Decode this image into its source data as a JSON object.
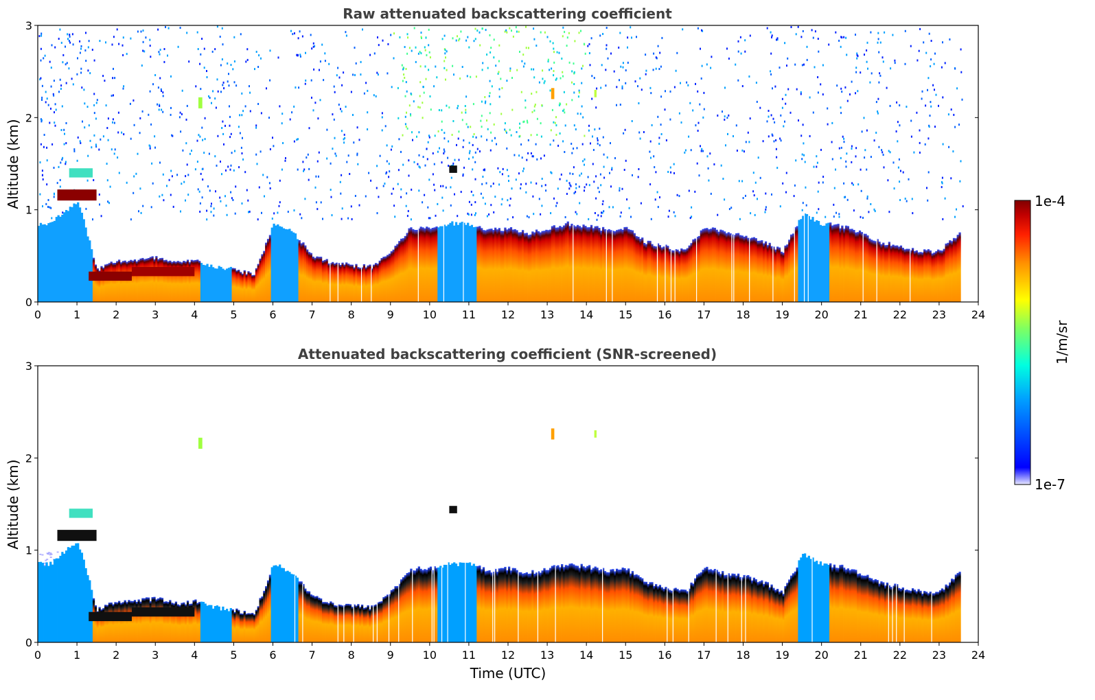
{
  "chart_data": [
    {
      "type": "heatmap",
      "title": "Raw attenuated backscattering coefficient",
      "xlabel": "",
      "ylabel": "Altitude (km)",
      "xlim": [
        0,
        24
      ],
      "ylim": [
        0,
        3
      ],
      "x_ticks": [
        "0",
        "1",
        "2",
        "3",
        "4",
        "5",
        "6",
        "7",
        "8",
        "9",
        "10",
        "11",
        "12",
        "13",
        "14",
        "15",
        "16",
        "17",
        "18",
        "19",
        "20",
        "21",
        "22",
        "23",
        "24"
      ],
      "y_ticks": [
        "0",
        "1",
        "2",
        "3"
      ],
      "screened": false,
      "boundary_layer_top_km": {
        "time_utc": [
          0.3,
          1.0,
          1.5,
          2.0,
          2.5,
          3.0,
          3.5,
          4.0,
          4.5,
          5.0,
          5.5,
          6.0,
          6.5,
          7.0,
          7.5,
          8.0,
          8.5,
          9.0,
          9.5,
          10.0,
          10.5,
          11.0,
          11.5,
          12.0,
          12.5,
          13.0,
          13.5,
          14.0,
          14.5,
          15.0,
          15.5,
          16.0,
          16.5,
          17.0,
          17.5,
          18.0,
          18.5,
          19.0,
          19.5,
          20.0,
          20.5,
          21.0,
          21.5,
          22.0,
          22.5,
          23.0,
          23.5
        ],
        "top_km": [
          0.85,
          1.1,
          0.35,
          0.45,
          0.45,
          0.48,
          0.42,
          0.45,
          0.38,
          0.35,
          0.3,
          0.85,
          0.75,
          0.5,
          0.42,
          0.4,
          0.38,
          0.55,
          0.8,
          0.8,
          0.85,
          0.85,
          0.78,
          0.8,
          0.75,
          0.8,
          0.85,
          0.82,
          0.78,
          0.8,
          0.65,
          0.6,
          0.55,
          0.82,
          0.75,
          0.72,
          0.65,
          0.55,
          0.95,
          0.85,
          0.82,
          0.75,
          0.65,
          0.6,
          0.55,
          0.55,
          0.75
        ]
      }
    },
    {
      "type": "heatmap",
      "title": "Attenuated backscattering coefficient (SNR-screened)",
      "xlabel": "Time (UTC)",
      "ylabel": "Altitude (km)",
      "xlim": [
        0,
        24
      ],
      "ylim": [
        0,
        3
      ],
      "x_ticks": [
        "0",
        "1",
        "2",
        "3",
        "4",
        "5",
        "6",
        "7",
        "8",
        "9",
        "10",
        "11",
        "12",
        "13",
        "14",
        "15",
        "16",
        "17",
        "18",
        "19",
        "20",
        "21",
        "22",
        "23",
        "24"
      ],
      "y_ticks": [
        "0",
        "1",
        "2",
        "3"
      ],
      "screened": true,
      "boundary_layer_top_km": {
        "time_utc": [
          0.3,
          1.0,
          1.5,
          2.0,
          2.5,
          3.0,
          3.5,
          4.0,
          4.5,
          5.0,
          5.5,
          6.0,
          6.5,
          7.0,
          7.5,
          8.0,
          8.5,
          9.0,
          9.5,
          10.0,
          10.5,
          11.0,
          11.5,
          12.0,
          12.5,
          13.0,
          13.5,
          14.0,
          14.5,
          15.0,
          15.5,
          16.0,
          16.5,
          17.0,
          17.5,
          18.0,
          18.5,
          19.0,
          19.5,
          20.0,
          20.5,
          21.0,
          21.5,
          22.0,
          22.5,
          23.0,
          23.5
        ],
        "top_km": [
          0.85,
          1.1,
          0.35,
          0.45,
          0.45,
          0.48,
          0.42,
          0.45,
          0.38,
          0.35,
          0.3,
          0.85,
          0.75,
          0.5,
          0.42,
          0.4,
          0.38,
          0.55,
          0.8,
          0.8,
          0.85,
          0.85,
          0.78,
          0.8,
          0.75,
          0.8,
          0.85,
          0.82,
          0.78,
          0.8,
          0.65,
          0.6,
          0.55,
          0.82,
          0.75,
          0.72,
          0.65,
          0.55,
          0.95,
          0.85,
          0.82,
          0.75,
          0.65,
          0.6,
          0.55,
          0.55,
          0.75
        ]
      }
    }
  ],
  "colorbar": {
    "max_label": "1e-4",
    "min_label": "1e-7",
    "unit_label": "1/m/sr",
    "colors": [
      "#e8e8ff",
      "#0000ff",
      "#00a0ff",
      "#00ffe0",
      "#80ff60",
      "#ffff00",
      "#ff9000",
      "#ff2000",
      "#c00000",
      "#800000"
    ]
  }
}
